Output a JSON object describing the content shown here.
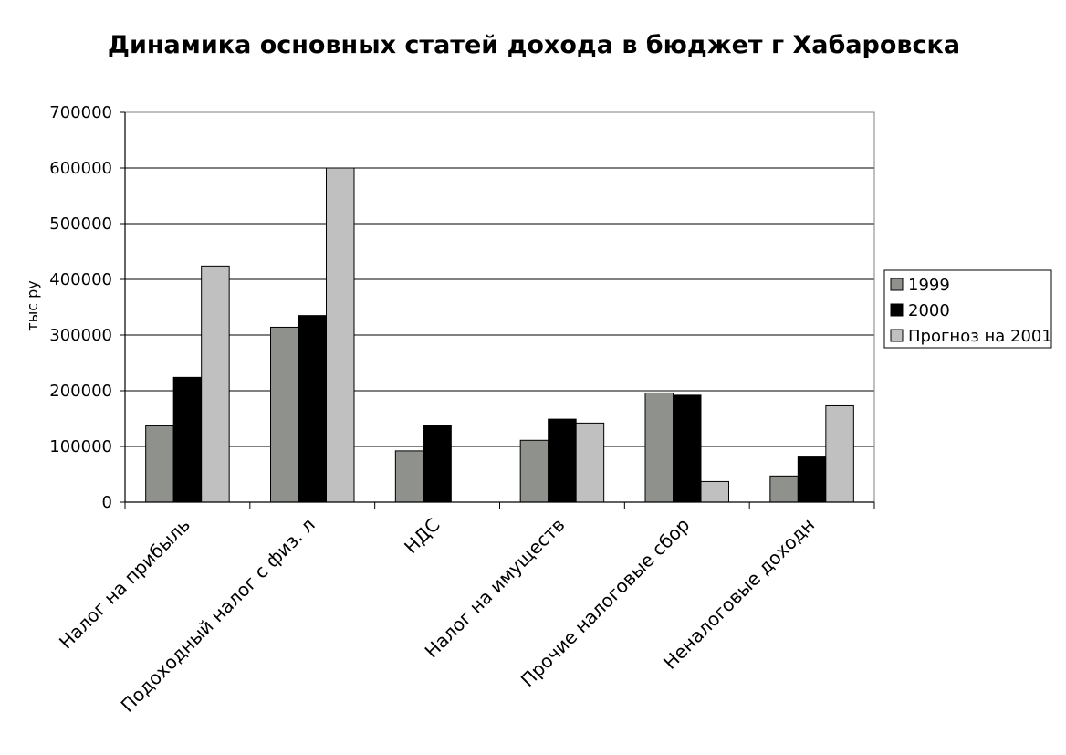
{
  "chart_data": {
    "type": "bar",
    "title": "Динамика основных статей дохода в бюджет г Хабаровска",
    "ylabel": "тыс ру",
    "xlabel": "",
    "ylim": [
      0,
      700000
    ],
    "yticks": [
      "0",
      "100000",
      "200000",
      "300000",
      "400000",
      "500000",
      "600000",
      "700000"
    ],
    "categories": [
      "Налог на прибыль",
      "Подоходный налог с физ. л",
      "НДС",
      "Налог на имуществ",
      "Прочие налоговые сбор",
      "Неналоговые доходн"
    ],
    "series": [
      {
        "name": "1999",
        "color": "#8f918c",
        "values": [
          137000,
          314000,
          92000,
          111000,
          196000,
          47000
        ]
      },
      {
        "name": "2000",
        "color": "#000000",
        "values": [
          224000,
          335000,
          138000,
          149000,
          192000,
          81000
        ]
      },
      {
        "name": "Прогноз на 2001",
        "color": "#c0c0c0",
        "values": [
          424000,
          600000,
          0,
          142000,
          37000,
          173000
        ]
      }
    ],
    "grid": true,
    "legend_position": "right"
  }
}
